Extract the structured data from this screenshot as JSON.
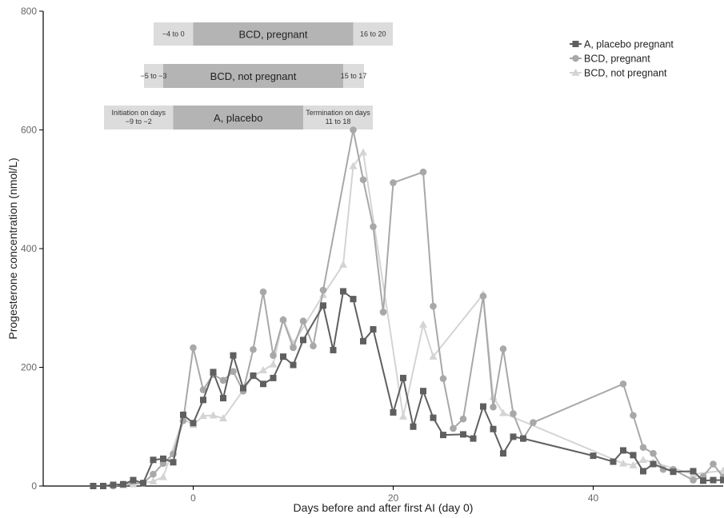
{
  "chart_data": {
    "type": "line",
    "xlabel": "Days before and after first AI (day 0)",
    "ylabel": "Progesterone concentration (nmol/L)",
    "xlim": [
      -15,
      53
    ],
    "ylim": [
      0,
      800
    ],
    "xticks": [
      0,
      20,
      40
    ],
    "yticks": [
      0,
      200,
      400,
      600,
      800
    ],
    "grid": false,
    "legend_position": "top-right",
    "series": [
      {
        "name": "A, placebo pregnant",
        "color": "#5f5f5f",
        "marker": "square",
        "points": [
          [
            -10,
            0
          ],
          [
            -9,
            0
          ],
          [
            -8,
            2
          ],
          [
            -7,
            3
          ],
          [
            -6,
            10
          ],
          [
            -5,
            5
          ],
          [
            -4,
            44
          ],
          [
            -3,
            46
          ],
          [
            -2,
            40
          ],
          [
            -1,
            120
          ],
          [
            0,
            106
          ],
          [
            1,
            145
          ],
          [
            2,
            192
          ],
          [
            3,
            148
          ],
          [
            4,
            220
          ],
          [
            5,
            165
          ],
          [
            6,
            186
          ],
          [
            7,
            172
          ],
          [
            8,
            182
          ],
          [
            9,
            218
          ],
          [
            10,
            204
          ],
          [
            11,
            246
          ],
          [
            13,
            304
          ],
          [
            14,
            229
          ],
          [
            15,
            328
          ],
          [
            16,
            315
          ],
          [
            17,
            244
          ],
          [
            18,
            264
          ],
          [
            20,
            124
          ],
          [
            21,
            182
          ],
          [
            22,
            100
          ],
          [
            23,
            160
          ],
          [
            24,
            115
          ],
          [
            25,
            86
          ],
          [
            27,
            87
          ],
          [
            28,
            80
          ],
          [
            29,
            134
          ],
          [
            30,
            96
          ],
          [
            31,
            55
          ],
          [
            32,
            83
          ],
          [
            33,
            80
          ],
          [
            40,
            51
          ],
          [
            42,
            41
          ],
          [
            43,
            60
          ],
          [
            44,
            52
          ],
          [
            45,
            25
          ],
          [
            46,
            37
          ],
          [
            48,
            24
          ],
          [
            50,
            25
          ],
          [
            51,
            9
          ],
          [
            52,
            10
          ],
          [
            53,
            10
          ]
        ]
      },
      {
        "name": "BCD, pregnant",
        "color": "#a8a8a8",
        "marker": "circle",
        "points": [
          [
            -8,
            0
          ],
          [
            -7,
            3
          ],
          [
            -5,
            5
          ],
          [
            -4,
            20
          ],
          [
            -3,
            38
          ],
          [
            -2,
            54
          ],
          [
            -1,
            110
          ],
          [
            0,
            233
          ],
          [
            1,
            162
          ],
          [
            2,
            188
          ],
          [
            3,
            178
          ],
          [
            4,
            193
          ],
          [
            5,
            160
          ],
          [
            6,
            230
          ],
          [
            7,
            327
          ],
          [
            8,
            220
          ],
          [
            9,
            280
          ],
          [
            10,
            233
          ],
          [
            11,
            278
          ],
          [
            12,
            236
          ],
          [
            13,
            330
          ],
          [
            16,
            600
          ],
          [
            17,
            516
          ],
          [
            18,
            437
          ],
          [
            19,
            293
          ],
          [
            20,
            511
          ],
          [
            23,
            529
          ],
          [
            24,
            303
          ],
          [
            25,
            181
          ],
          [
            26,
            97
          ],
          [
            27,
            113
          ],
          [
            29,
            320
          ],
          [
            30,
            133
          ],
          [
            31,
            231
          ],
          [
            32,
            122
          ],
          [
            33,
            80
          ],
          [
            34,
            107
          ],
          [
            43,
            172
          ],
          [
            44,
            119
          ],
          [
            45,
            65
          ],
          [
            46,
            55
          ],
          [
            47,
            28
          ],
          [
            48,
            28
          ],
          [
            50,
            10
          ],
          [
            51,
            16
          ],
          [
            52,
            37
          ],
          [
            53,
            15
          ]
        ]
      },
      {
        "name": "BCD, not pregnant",
        "color": "#d4d4d4",
        "marker": "triangle",
        "points": [
          [
            -7,
            1
          ],
          [
            -6,
            3
          ],
          [
            -4,
            8
          ],
          [
            -3,
            15
          ],
          [
            -1,
            113
          ],
          [
            0,
            103
          ],
          [
            1,
            118
          ],
          [
            2,
            119
          ],
          [
            3,
            114
          ],
          [
            6,
            185
          ],
          [
            7,
            195
          ],
          [
            8,
            205
          ],
          [
            9,
            281
          ],
          [
            10,
            240
          ],
          [
            13,
            322
          ],
          [
            15,
            373
          ],
          [
            16,
            539
          ],
          [
            17,
            562
          ],
          [
            21,
            117
          ],
          [
            23,
            272
          ],
          [
            24,
            218
          ],
          [
            29,
            323
          ],
          [
            30,
            150
          ],
          [
            31,
            123
          ],
          [
            43,
            38
          ],
          [
            44,
            35
          ],
          [
            45,
            44
          ],
          [
            46,
            40
          ],
          [
            50,
            20
          ],
          [
            53,
            26
          ]
        ]
      }
    ],
    "annotations": [
      {
        "text": "BCD, pregnant",
        "left_text": "−4 to 0",
        "right_text": "16 to 20",
        "band_start": 0,
        "band_end": 16
      },
      {
        "text": "BCD, not pregnant",
        "left_text": "−5 to −3",
        "right_text": "15 to 17",
        "band_start": -3,
        "band_end": 15
      },
      {
        "text": "A, placebo",
        "left_text": "Initiation on days −9 to −2",
        "right_text": "Termination on days 11 to 18",
        "band_start": -2,
        "band_end": 11
      }
    ]
  }
}
